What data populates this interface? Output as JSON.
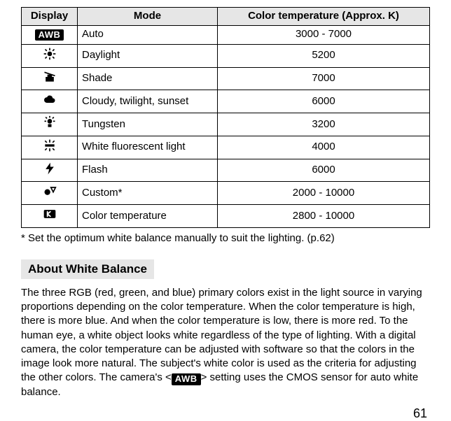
{
  "table": {
    "headers": {
      "display": "Display",
      "mode": "Mode",
      "temp": "Color temperature (Approx. K)"
    },
    "rows": [
      {
        "icon": "awb",
        "mode": "Auto",
        "temp": "3000 - 7000"
      },
      {
        "icon": "sun",
        "mode": "Daylight",
        "temp": "5200"
      },
      {
        "icon": "shade",
        "mode": "Shade",
        "temp": "7000"
      },
      {
        "icon": "cloud",
        "mode": "Cloudy, twilight, sunset",
        "temp": "6000"
      },
      {
        "icon": "tungsten",
        "mode": "Tungsten",
        "temp": "3200"
      },
      {
        "icon": "fluorescent",
        "mode": "White fluorescent light",
        "temp": "4000"
      },
      {
        "icon": "flash",
        "mode": "Flash",
        "temp": "6000"
      },
      {
        "icon": "custom",
        "mode": "Custom*",
        "temp": "2000 - 10000"
      },
      {
        "icon": "kelvin",
        "mode": "Color temperature",
        "temp": "2800 - 10000"
      }
    ]
  },
  "footnote": "* Set the optimum white balance manually to suit the lighting. (p.62)",
  "section_heading": "About White Balance",
  "body_pre": "The three RGB (red, green, and blue) primary colors exist in the light source in varying proportions depending on the color temperature. When the color temperature is high, there is more blue. And when the color temperature is low, there is more red. To the human eye, a white object looks white regardless of the type of lighting. With a digital camera, the color temperature can be adjusted with software so that the colors in the image look more natural. The subject's white color is used as the criteria for adjusting the other colors. The camera's <",
  "body_awb": "AWB",
  "body_post": "> setting uses the CMOS sensor for auto white balance.",
  "page_number": "61",
  "awb_label": "AWB",
  "colors": {
    "header_bg": "#e6e6e6",
    "border": "#000000",
    "text": "#000000",
    "awb_bg": "#000000",
    "awb_fg": "#ffffff"
  }
}
